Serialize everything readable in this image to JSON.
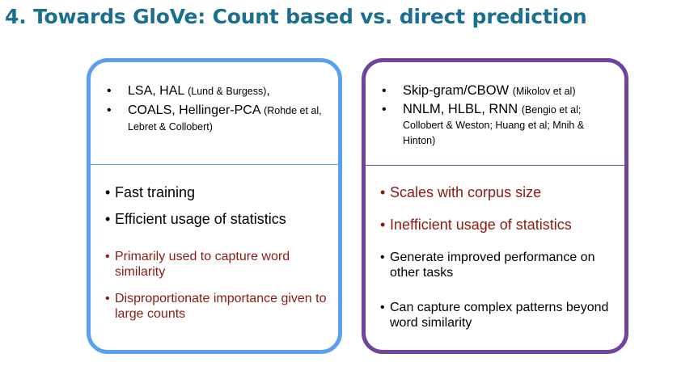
{
  "title": "4. Towards GloVe: Count based vs. direct prediction",
  "left": {
    "top_items": [
      {
        "main": "LSA, HAL ",
        "cite": "(Lund & Burgess)",
        "tail": ","
      },
      {
        "main": "COALS, Hellinger-PCA ",
        "cite": "(Rohde et al, Lebret & Collobert)",
        "tail": ""
      }
    ],
    "bottom_items": [
      "Fast training",
      "Efficient usage of statistics",
      "Primarily used to capture word similarity",
      "Disproportionate importance given to large counts"
    ]
  },
  "right": {
    "top_items": [
      {
        "main": "Skip-gram/CBOW ",
        "cite": "(Mikolov et al)"
      },
      {
        "main": "NNLM, HLBL, RNN ",
        "cite": "(Bengio et al; Collobert & Weston; Huang et al; Mnih & Hinton)"
      }
    ],
    "bottom_items": [
      "Scales with corpus size",
      "Inefficient usage of statistics",
      "Generate improved performance on other tasks",
      "Can capture complex patterns beyond word similarity"
    ]
  },
  "colors": {
    "title": "#1a6f8f",
    "left_border": "#5aa0ef",
    "right_border": "#70439c",
    "emphasis_red": "#8b1a10"
  }
}
